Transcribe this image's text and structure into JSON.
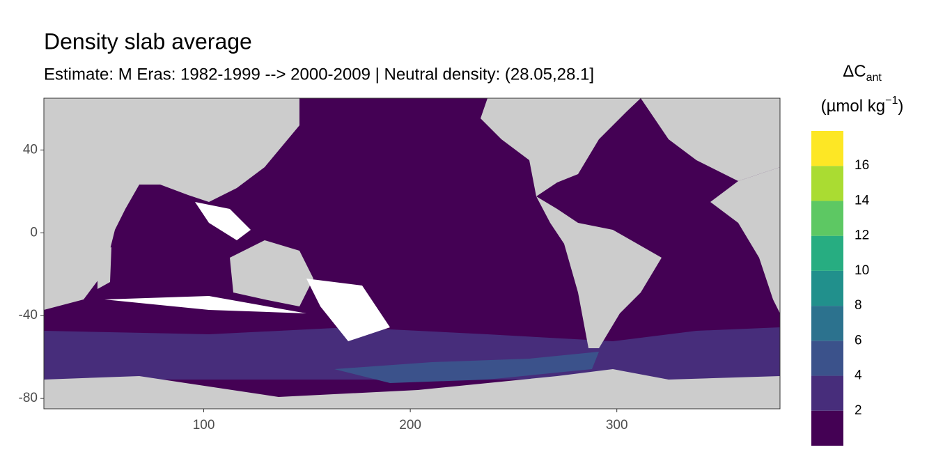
{
  "chart_data": {
    "type": "map",
    "title": "Density slab average",
    "subtitle": "Estimate: M Eras: 1982-1999 --> 2000-2009 | Neutral density: (28.05,28.1]",
    "xlim": [
      22.6,
      379
    ],
    "ylim": [
      -85,
      65
    ],
    "xticks": [
      100,
      200,
      300
    ],
    "yticks": [
      40,
      0,
      -40,
      -80
    ],
    "legend": {
      "title_main": "ΔC",
      "title_sub": "ant",
      "unit_main": "(µmol kg",
      "unit_sup": "−1",
      "unit_end": ")",
      "limits": [
        0,
        18
      ],
      "breaks": [
        2,
        4,
        6,
        8,
        10,
        12,
        14,
        16
      ],
      "colors": [
        "#440154",
        "#472D7B",
        "#3B528B",
        "#2C728E",
        "#21908C",
        "#27AD81",
        "#5DC863",
        "#AADC32",
        "#FDE725"
      ]
    }
  }
}
